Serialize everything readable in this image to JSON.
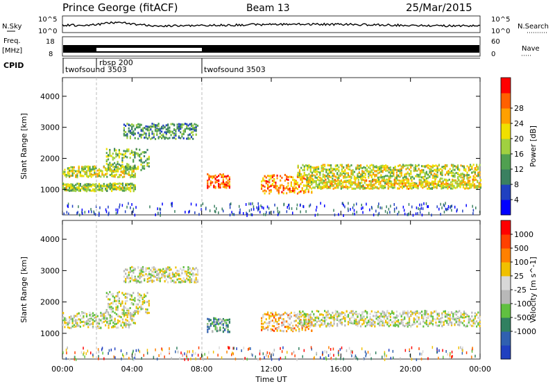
{
  "header": {
    "station": "Prince George (fitACF)",
    "beam": "Beam 13",
    "date": "25/Mar/2015"
  },
  "strip_nsky": {
    "left_label": "N.Sky",
    "right_label": "N.Search",
    "tick_top": "10^5",
    "tick_bottom": "10^0",
    "right_tick_top": "10^5",
    "right_tick_bottom": "10^0"
  },
  "strip_freq": {
    "left_label": "Freq.",
    "left_unit": "[MHz]",
    "left_ticks": [
      "18",
      "8"
    ],
    "right_label": "Nave",
    "right_ticks": [
      "60",
      "0"
    ]
  },
  "cpid": {
    "label": "CPID",
    "segments": [
      {
        "name": "twofsound 3503",
        "start": 0
      },
      {
        "name": "rbsp 200",
        "start": 2.0
      },
      {
        "name": "twofsound 3503",
        "start": 8.0
      }
    ]
  },
  "chart_data": [
    {
      "type": "heatmap",
      "title": "Power",
      "ylabel": "Slant Range [km]",
      "xlabel": "Time UT",
      "x_ticks": [
        "00:00",
        "04:00",
        "08:00",
        "12:00",
        "16:00",
        "20:00",
        "00:00"
      ],
      "xlim_hours": [
        0,
        24
      ],
      "ylim": [
        180,
        4600
      ],
      "y_ticks": [
        1000,
        2000,
        3000,
        4000
      ],
      "colorbar": {
        "label": "Power [dB]",
        "ticks": [
          "4",
          "8",
          "12",
          "16",
          "20",
          "24",
          "28"
        ],
        "colors": [
          "#0000ff",
          "#2040c0",
          "#3a8060",
          "#50a050",
          "#a0d040",
          "#f0e000",
          "#ffa000",
          "#ff6000",
          "#ff0000"
        ]
      },
      "echo_bands": [
        {
          "t": [
            0.0,
            4.2
          ],
          "center": 1600,
          "width": 350,
          "level": 0.55
        },
        {
          "t": [
            0.0,
            4.2
          ],
          "center": 1100,
          "width": 250,
          "level": 0.5
        },
        {
          "t": [
            2.5,
            5.0
          ],
          "center": 2000,
          "width": 700,
          "level": 0.45
        },
        {
          "t": [
            3.5,
            7.8
          ],
          "center": 2900,
          "width": 500,
          "level": 0.35
        },
        {
          "t": [
            8.3,
            9.6
          ],
          "center": 1300,
          "width": 450,
          "level": 0.85
        },
        {
          "t": [
            11.4,
            14.3
          ],
          "center": 1200,
          "width": 600,
          "level": 0.75
        },
        {
          "t": [
            13.5,
            24.0
          ],
          "center": 1600,
          "width": 450,
          "level": 0.55
        },
        {
          "t": [
            14.0,
            24.0
          ],
          "center": 1200,
          "width": 300,
          "level": 0.6
        }
      ]
    },
    {
      "type": "heatmap",
      "title": "Velocity",
      "ylabel": "Slant Range [km]",
      "xlabel": "Time UT",
      "x_ticks": [
        "00:00",
        "04:00",
        "08:00",
        "12:00",
        "16:00",
        "20:00",
        "00:00"
      ],
      "xlim_hours": [
        0,
        24
      ],
      "ylim": [
        180,
        4600
      ],
      "y_ticks": [
        1000,
        2000,
        3000,
        4000
      ],
      "colorbar": {
        "label": "Velocity [m s^-1]",
        "ticks": [
          "1000",
          "500",
          "100",
          "25",
          "-25",
          "-100",
          "-500",
          "-1000"
        ],
        "colors": [
          "#2040c0",
          "#3060b0",
          "#308060",
          "#60c040",
          "#b8b8b8",
          "#d8d8d8",
          "#f0c000",
          "#ff8000",
          "#ff4000",
          "#ff0000"
        ]
      },
      "echo_bands": [
        {
          "t": [
            0.0,
            4.2
          ],
          "center": 1450,
          "width": 500,
          "level": 0.5
        },
        {
          "t": [
            2.5,
            5.0
          ],
          "center": 2000,
          "width": 700,
          "level": 0.5
        },
        {
          "t": [
            3.5,
            7.8
          ],
          "center": 2900,
          "width": 500,
          "level": 0.5
        },
        {
          "t": [
            8.3,
            9.6
          ],
          "center": 1300,
          "width": 450,
          "level": 0.3
        },
        {
          "t": [
            11.4,
            14.3
          ],
          "center": 1400,
          "width": 600,
          "level": 0.65
        },
        {
          "t": [
            13.5,
            24.0
          ],
          "center": 1500,
          "width": 500,
          "level": 0.5
        }
      ]
    }
  ]
}
